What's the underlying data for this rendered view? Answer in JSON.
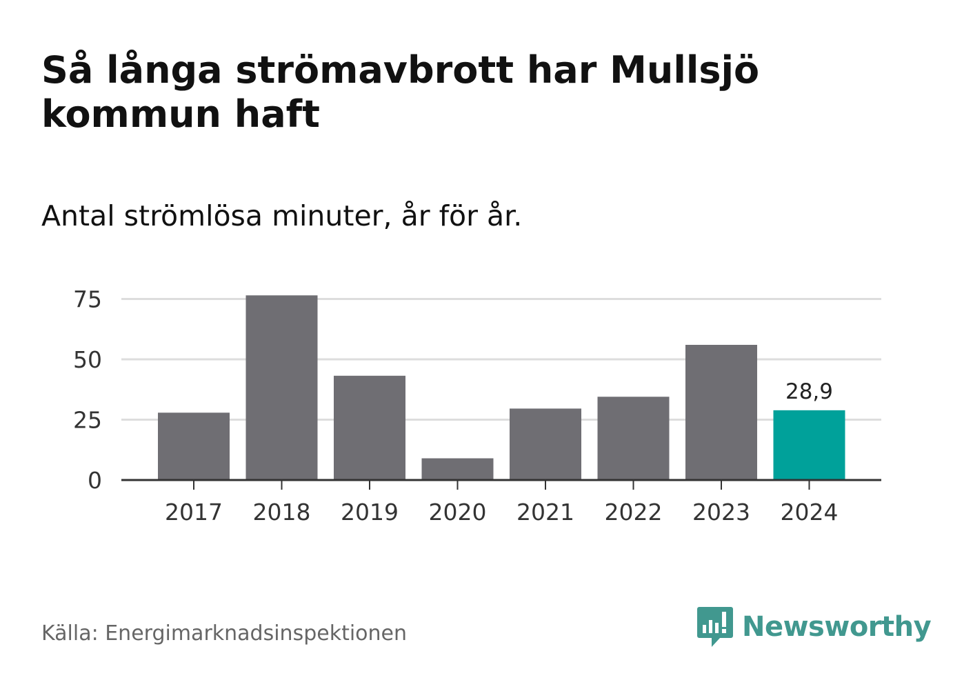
{
  "header": {
    "title": "Så långa strömavbrott har Mullsjö kommun haft",
    "subtitle": "Antal strömlösa minuter, år för år."
  },
  "footer": {
    "source": "Källa: Energimarknadsinspektionen",
    "brand": "Newsworthy"
  },
  "colors": {
    "bar": "#6f6e73",
    "highlight": "#00a19a",
    "brand": "#41988f",
    "grid": "#dddddd",
    "axis": "#333333"
  },
  "chart_data": {
    "type": "bar",
    "title": "Så långa strömavbrott har Mullsjö kommun haft",
    "subtitle": "Antal strömlösa minuter, år för år.",
    "xlabel": "",
    "ylabel": "",
    "categories": [
      "2017",
      "2018",
      "2019",
      "2020",
      "2021",
      "2022",
      "2023",
      "2024"
    ],
    "values": [
      27.9,
      76.5,
      43.2,
      9.0,
      29.6,
      34.5,
      56.0,
      28.9
    ],
    "highlight_index": 7,
    "data_labels": [
      {
        "category": "2024",
        "label": "28,9"
      }
    ],
    "yticks": [
      0,
      25,
      50,
      75
    ],
    "ytick_labels": [
      "0",
      "25",
      "50",
      "75"
    ],
    "ylim": [
      0,
      80
    ],
    "grid": true,
    "legend": false
  }
}
